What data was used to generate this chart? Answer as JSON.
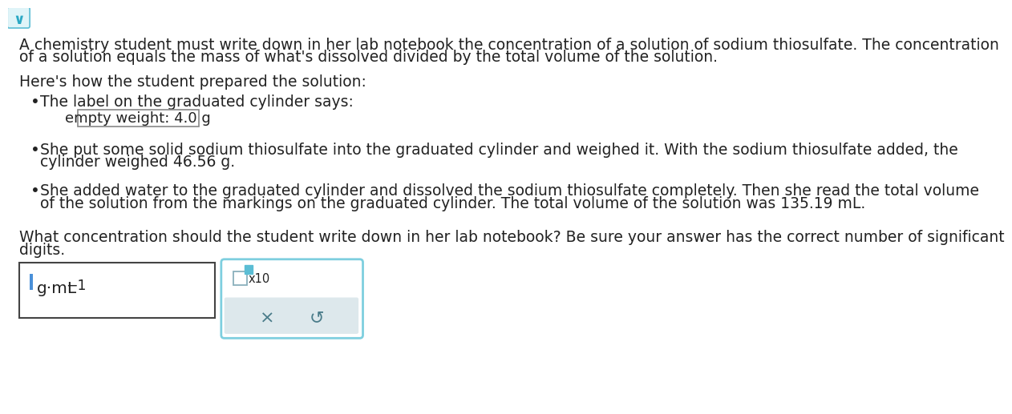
{
  "bg_color": "#ffffff",
  "chevron_bg": "#dff4f8",
  "chevron_border": "#5bbdd4",
  "chevron_color": "#2aa8c4",
  "body_text_1a": "A chemistry student must write down in her lab notebook the concentration of a solution of sodium thiosulfate. The concentration",
  "body_text_1b": "of a solution equals the mass of what's dissolved divided by the total volume of the solution.",
  "here_text": "Here's how the student prepared the solution:",
  "bullet1_text": "The label on the graduated cylinder says:",
  "box_label_text": "empty weight: 4.0 g",
  "bullet2a": "She put some solid sodium thiosulfate into the graduated cylinder and weighed it. With the sodium thiosulfate added, the",
  "bullet2b": "cylinder weighed 46.56 g.",
  "bullet3a": "She added water to the graduated cylinder and dissolved the sodium thiosulfate completely. Then she read the total volume",
  "bullet3b": "of the solution from the markings on the graduated cylinder. The total volume of the solution was 135.19 mL.",
  "question_a": "What concentration should the student write down in her lab notebook? Be sure your answer has the correct number of significant",
  "question_b": "digits.",
  "answer_box_border": "#444444",
  "input_box_border": "#7ecfdf",
  "cursor_color": "#4a90d9",
  "teal_box_color": "#5bbdd4",
  "gray_panel_color": "#dde8ec",
  "x_symbol": "×",
  "undo_symbol": "↺",
  "text_color": "#222222",
  "button_color": "#4a7c8a",
  "font_size_body": 13.5,
  "font_size_box_label": 13.0,
  "font_size_unit": 13.5,
  "font_size_buttons": 15
}
